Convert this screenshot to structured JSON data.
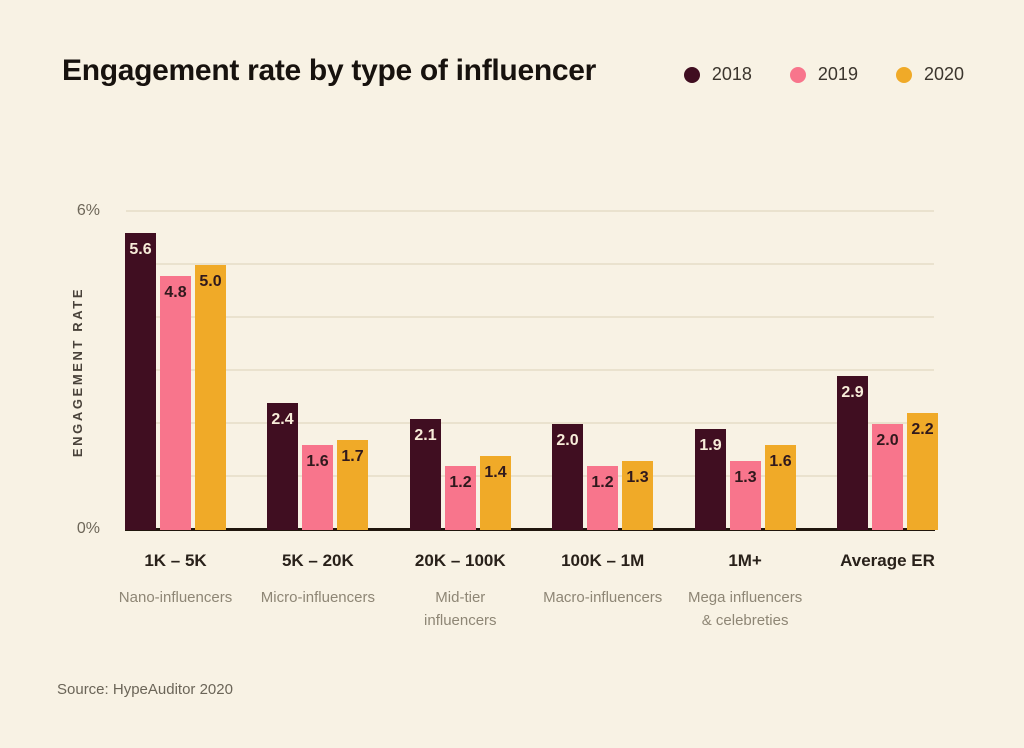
{
  "page": {
    "title": "Engagement rate by type of influencer",
    "source": "Source: HypeAuditor 2020",
    "background": "#f8f2e4"
  },
  "chart_data": {
    "type": "bar",
    "title": "Engagement rate by type of influencer",
    "xlabel": "",
    "ylabel": "ENGAGEMENT RATE",
    "ylim": [
      0,
      6
    ],
    "yticks": [
      {
        "value": 6,
        "label": "6%"
      },
      {
        "value": 0,
        "label": "0%"
      }
    ],
    "gridlines_pct": [
      1,
      2,
      3,
      4,
      5,
      6
    ],
    "grid": "horizontal",
    "legend_position": "top-right",
    "categories": [
      {
        "label": "1K – 5K",
        "sublabel": "Nano-influencers"
      },
      {
        "label": "5K – 20K",
        "sublabel": "Micro-influencers"
      },
      {
        "label": "20K – 100K",
        "sublabel": "Mid-tier\ninfluencers"
      },
      {
        "label": "100K – 1M",
        "sublabel": "Macro-influencers"
      },
      {
        "label": "1M+",
        "sublabel": "Mega influencers\n& celebreties"
      },
      {
        "label": "Average ER",
        "sublabel": ""
      }
    ],
    "series": [
      {
        "name": "2018",
        "color": "#400e21",
        "label_color": "#f7ecd9",
        "values": [
          5.6,
          2.4,
          2.1,
          2.0,
          1.9,
          2.9
        ]
      },
      {
        "name": "2019",
        "color": "#f8758c",
        "label_color": "#30191d",
        "values": [
          4.8,
          1.6,
          1.2,
          1.2,
          1.3,
          2.0
        ]
      },
      {
        "name": "2020",
        "color": "#f0aa28",
        "label_color": "#30191d",
        "values": [
          5.0,
          1.7,
          1.4,
          1.3,
          1.6,
          2.2
        ]
      }
    ]
  }
}
